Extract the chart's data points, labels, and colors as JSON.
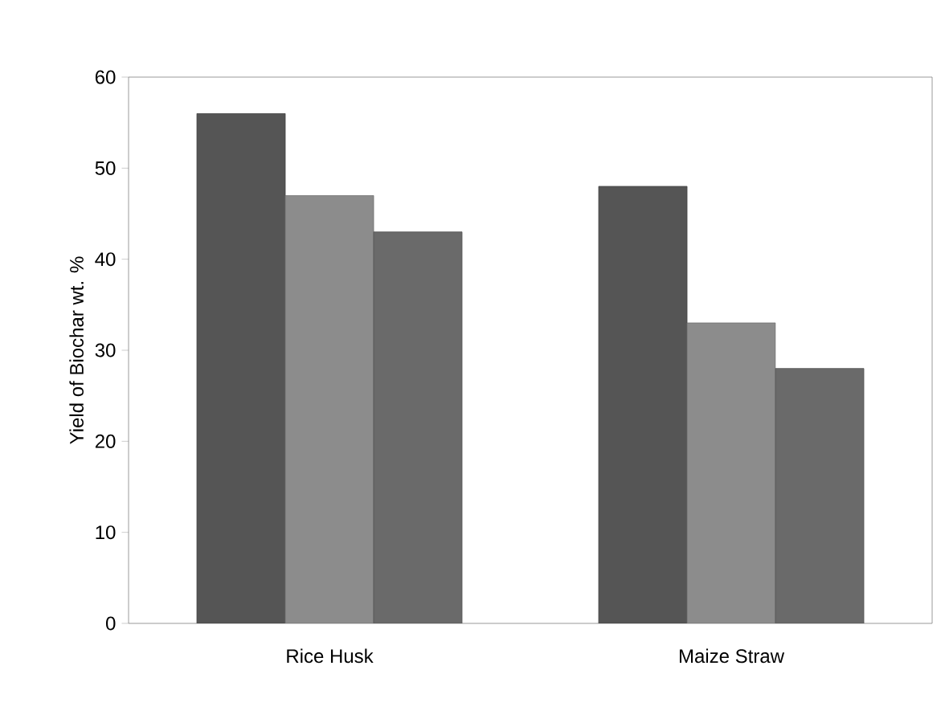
{
  "chart_data": {
    "type": "bar",
    "ylabel": "Yield of Biochar  wt. %",
    "categories": [
      "Rice Husk",
      "Maize Straw"
    ],
    "series": [
      {
        "color": "#555555",
        "values": [
          56,
          48
        ]
      },
      {
        "color": "#8c8c8c",
        "values": [
          47,
          33
        ]
      },
      {
        "color": "#6a6a6a",
        "values": [
          43,
          28
        ]
      }
    ],
    "ylim": [
      0,
      60
    ],
    "yticks": [
      0,
      10,
      20,
      30,
      40,
      50,
      60
    ]
  }
}
